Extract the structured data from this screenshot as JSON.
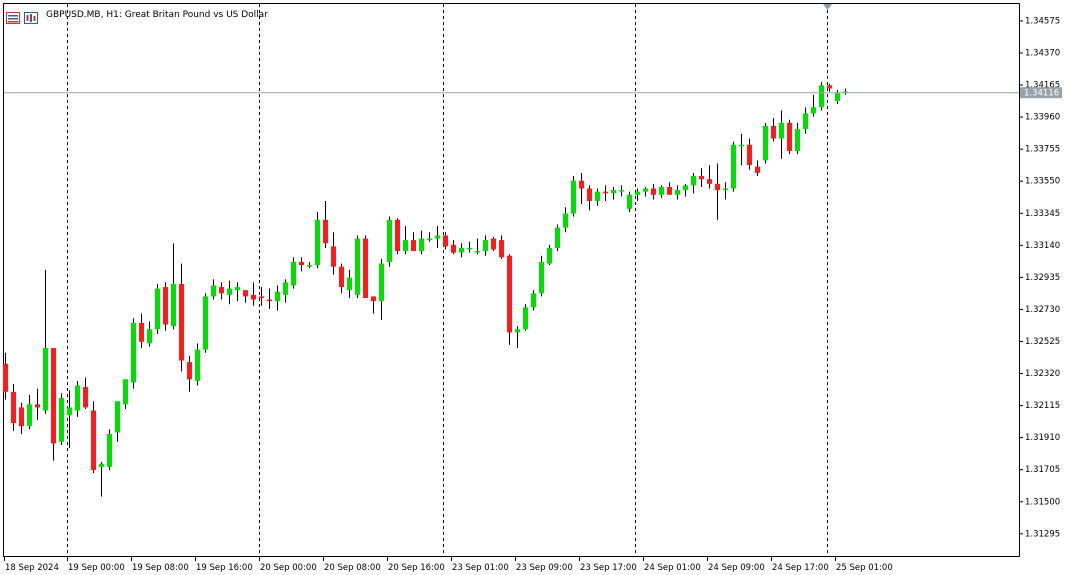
{
  "window": {
    "title": "GBPUSD.MB, H1:  Great Britan Pound vs US Dollar",
    "symbol": "GBPUSD.MB",
    "timeframe": "H1"
  },
  "icons": [
    "chart-bars-icon",
    "timeframe-icon"
  ],
  "colors": {
    "bull": "#00e000",
    "bear": "#ff1a1a",
    "wick": "#000000",
    "grid": "#000000",
    "current_price_line": "#98a2ab",
    "current_price_label_bg": "#98a2ab",
    "shift_marker": "#8c9aa8"
  },
  "price_axis": {
    "ticks": [
      "1.34575",
      "1.34370",
      "1.34165",
      "1.33960",
      "1.33755",
      "1.33550",
      "1.33345",
      "1.33140",
      "1.32935",
      "1.32730",
      "1.32525",
      "1.32320",
      "1.32115",
      "1.31910",
      "1.31705",
      "1.31500",
      "1.31295"
    ],
    "current_price": "1.34116"
  },
  "time_axis": {
    "labels": [
      "18 Sep 2024",
      "19 Sep 00:00",
      "19 Sep 08:00",
      "19 Sep 16:00",
      "20 Sep 00:00",
      "20 Sep 08:00",
      "20 Sep 16:00",
      "23 Sep 01:00",
      "23 Sep 09:00",
      "23 Sep 17:00",
      "24 Sep 01:00",
      "24 Sep 09:00",
      "24 Sep 17:00",
      "25 Sep 01:00"
    ]
  },
  "chart_data": {
    "type": "candlestick",
    "title": "GBPUSD.MB, H1:  Great Britan Pound vs US Dollar",
    "ylim": [
      1.3115,
      1.3468
    ],
    "grid": "vertical dashed at session starts",
    "candles": [
      [
        1.3238,
        1.3245,
        1.3215,
        1.322
      ],
      [
        1.322,
        1.3225,
        1.3195,
        1.32
      ],
      [
        1.321,
        1.3213,
        1.3193,
        1.3198
      ],
      [
        1.3198,
        1.3218,
        1.3196,
        1.3212
      ],
      [
        1.3212,
        1.3222,
        1.3202,
        1.321
      ],
      [
        1.3208,
        1.3298,
        1.3206,
        1.3248
      ],
      [
        1.3248,
        1.3248,
        1.3176,
        1.3187
      ],
      [
        1.3188,
        1.3219,
        1.3186,
        1.3216
      ],
      [
        1.3205,
        1.3221,
        1.3184,
        1.321
      ],
      [
        1.3208,
        1.3227,
        1.3204,
        1.3224
      ],
      [
        1.3223,
        1.3229,
        1.3209,
        1.321
      ],
      [
        1.3208,
        1.3214,
        1.3168,
        1.317
      ],
      [
        1.3172,
        1.3175,
        1.3153,
        1.3174
      ],
      [
        1.3172,
        1.3196,
        1.317,
        1.3193
      ],
      [
        1.3194,
        1.3214,
        1.3188,
        1.3214
      ],
      [
        1.3212,
        1.3228,
        1.3209,
        1.3228
      ],
      [
        1.3226,
        1.3267,
        1.3222,
        1.3264
      ],
      [
        1.3264,
        1.327,
        1.3248,
        1.3252
      ],
      [
        1.3251,
        1.3265,
        1.3249,
        1.326
      ],
      [
        1.326,
        1.3289,
        1.3257,
        1.3286
      ],
      [
        1.3287,
        1.329,
        1.3259,
        1.3263
      ],
      [
        1.3262,
        1.3315,
        1.326,
        1.3289
      ],
      [
        1.3289,
        1.3302,
        1.3233,
        1.324
      ],
      [
        1.3239,
        1.3243,
        1.322,
        1.3228
      ],
      [
        1.3227,
        1.3251,
        1.3224,
        1.3247
      ],
      [
        1.3247,
        1.3283,
        1.3245,
        1.3281
      ],
      [
        1.3281,
        1.3292,
        1.3279,
        1.3288
      ],
      [
        1.3287,
        1.329,
        1.3279,
        1.3283
      ],
      [
        1.3282,
        1.3291,
        1.3276,
        1.3286
      ],
      [
        1.3285,
        1.329,
        1.3278,
        1.3287
      ],
      [
        1.3285,
        1.3285,
        1.3277,
        1.3281
      ],
      [
        1.3282,
        1.329,
        1.3275,
        1.3279
      ],
      [
        1.3281,
        1.3287,
        1.3275,
        1.328
      ],
      [
        1.3279,
        1.3286,
        1.3273,
        1.3278
      ],
      [
        1.3278,
        1.3288,
        1.3272,
        1.3284
      ],
      [
        1.3282,
        1.3292,
        1.3277,
        1.329
      ],
      [
        1.3288,
        1.3306,
        1.3286,
        1.3303
      ],
      [
        1.3303,
        1.3306,
        1.3297,
        1.3301
      ],
      [
        1.3301,
        1.3303,
        1.3299,
        1.3301
      ],
      [
        1.3301,
        1.3335,
        1.3299,
        1.333
      ],
      [
        1.333,
        1.3342,
        1.3312,
        1.3315
      ],
      [
        1.3313,
        1.3322,
        1.3295,
        1.33
      ],
      [
        1.33,
        1.3302,
        1.3283,
        1.3287
      ],
      [
        1.3285,
        1.3298,
        1.328,
        1.3293
      ],
      [
        1.3282,
        1.332,
        1.328,
        1.3318
      ],
      [
        1.3318,
        1.332,
        1.328,
        1.328
      ],
      [
        1.3281,
        1.3281,
        1.327,
        1.3278
      ],
      [
        1.3278,
        1.3305,
        1.3266,
        1.3302
      ],
      [
        1.3303,
        1.3332,
        1.33,
        1.333
      ],
      [
        1.333,
        1.3331,
        1.3308,
        1.331
      ],
      [
        1.331,
        1.3326,
        1.3308,
        1.3317
      ],
      [
        1.3317,
        1.3322,
        1.331,
        1.331
      ],
      [
        1.331,
        1.3323,
        1.3308,
        1.3318
      ],
      [
        1.3318,
        1.3322,
        1.3316,
        1.3318
      ],
      [
        1.3318,
        1.3326,
        1.3312,
        1.332
      ],
      [
        1.332,
        1.3322,
        1.3311,
        1.3313
      ],
      [
        1.3314,
        1.3317,
        1.3308,
        1.3309
      ],
      [
        1.3309,
        1.3315,
        1.3306,
        1.3312
      ],
      [
        1.3312,
        1.3316,
        1.3309,
        1.3312
      ],
      [
        1.331,
        1.3318,
        1.3308,
        1.331
      ],
      [
        1.331,
        1.332,
        1.3307,
        1.3317
      ],
      [
        1.3318,
        1.3319,
        1.331,
        1.3311
      ],
      [
        1.3317,
        1.332,
        1.3305,
        1.3306
      ],
      [
        1.3307,
        1.3308,
        1.325,
        1.3258
      ],
      [
        1.3258,
        1.3262,
        1.3248,
        1.326
      ],
      [
        1.326,
        1.3276,
        1.3259,
        1.3274
      ],
      [
        1.3274,
        1.3285,
        1.3272,
        1.3283
      ],
      [
        1.3283,
        1.3307,
        1.3281,
        1.3303
      ],
      [
        1.3302,
        1.3314,
        1.3301,
        1.3312
      ],
      [
        1.3312,
        1.3327,
        1.331,
        1.3325
      ],
      [
        1.3325,
        1.3338,
        1.3322,
        1.3334
      ],
      [
        1.3334,
        1.3358,
        1.3332,
        1.3355
      ],
      [
        1.3355,
        1.336,
        1.334,
        1.335
      ],
      [
        1.335,
        1.3352,
        1.3336,
        1.3342
      ],
      [
        1.3342,
        1.335,
        1.3339,
        1.3348
      ],
      [
        1.3348,
        1.3352,
        1.3342,
        1.3347
      ],
      [
        1.3347,
        1.3351,
        1.3343,
        1.3349
      ],
      [
        1.3349,
        1.3352,
        1.3345,
        1.3349
      ],
      [
        1.3337,
        1.3348,
        1.3335,
        1.3346
      ],
      [
        1.3346,
        1.335,
        1.3342,
        1.3348
      ],
      [
        1.3348,
        1.3351,
        1.3345,
        1.335
      ],
      [
        1.335,
        1.3353,
        1.3343,
        1.3346
      ],
      [
        1.3346,
        1.3352,
        1.3344,
        1.3351
      ],
      [
        1.3351,
        1.3354,
        1.3346,
        1.3346
      ],
      [
        1.3346,
        1.3352,
        1.3343,
        1.3349
      ],
      [
        1.3349,
        1.3353,
        1.3345,
        1.3352
      ],
      [
        1.3352,
        1.336,
        1.3347,
        1.3358
      ],
      [
        1.3358,
        1.3363,
        1.3351,
        1.3356
      ],
      [
        1.3356,
        1.3365,
        1.335,
        1.3353
      ],
      [
        1.3353,
        1.3366,
        1.333,
        1.3349
      ],
      [
        1.3349,
        1.3354,
        1.3343,
        1.335
      ],
      [
        1.335,
        1.338,
        1.3348,
        1.3378
      ],
      [
        1.3378,
        1.3385,
        1.3365,
        1.3378
      ],
      [
        1.3378,
        1.3382,
        1.3362,
        1.3365
      ],
      [
        1.3364,
        1.3368,
        1.3358,
        1.336
      ],
      [
        1.3368,
        1.3392,
        1.3366,
        1.339
      ],
      [
        1.339,
        1.3395,
        1.338,
        1.3382
      ],
      [
        1.3382,
        1.34,
        1.3369,
        1.3392
      ],
      [
        1.3392,
        1.3394,
        1.3372,
        1.3374
      ],
      [
        1.3374,
        1.3392,
        1.3372,
        1.3388
      ],
      [
        1.3388,
        1.3402,
        1.3385,
        1.3398
      ],
      [
        1.3398,
        1.341,
        1.3396,
        1.3402
      ],
      [
        1.3402,
        1.3418,
        1.34,
        1.3416
      ],
      [
        1.3416,
        1.3417,
        1.3412,
        1.3414
      ],
      [
        1.3406,
        1.3413,
        1.3404,
        1.3411
      ],
      [
        1.3411,
        1.3414,
        1.341,
        1.3412
      ]
    ]
  }
}
